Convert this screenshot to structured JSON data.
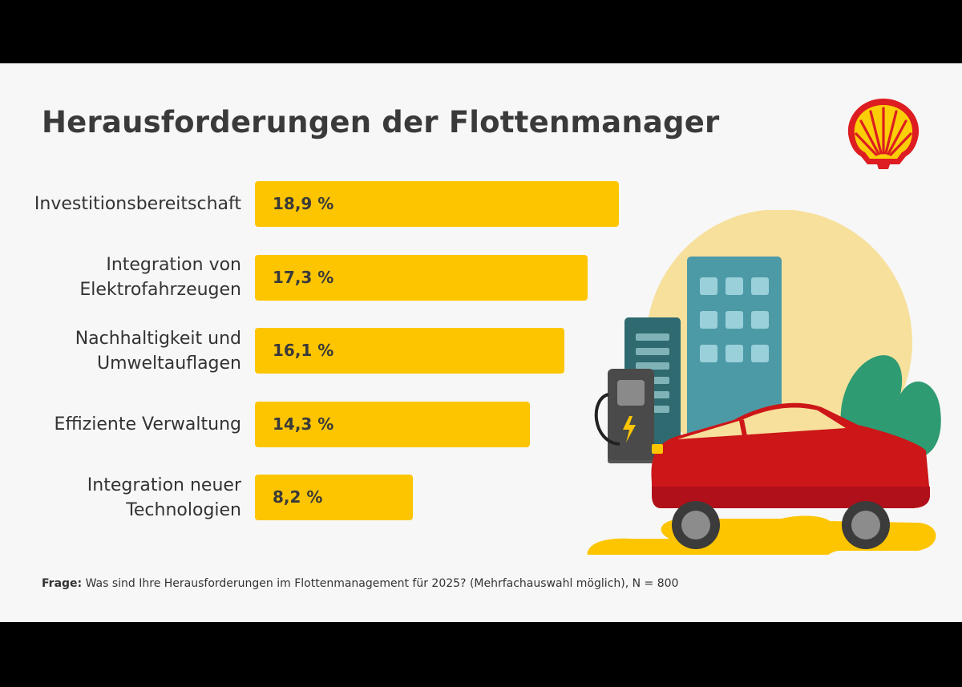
{
  "chart_data": {
    "type": "bar",
    "orientation": "horizontal",
    "title": "Herausforderungen der Flottenmanager",
    "categories": [
      "Investitionsbereitschaft",
      "Integration von\nElektrofahrzeugen",
      "Nachhaltigkeit und\nUmweltauflagen",
      "Effiziente Verwaltung",
      "Integration neuer\nTechnologien"
    ],
    "values": [
      18.9,
      17.3,
      16.1,
      14.3,
      8.2
    ],
    "value_labels": [
      "18,9 %",
      "17,3 %",
      "16,1 %",
      "14,3 %",
      "8,2 %"
    ],
    "xlim": [
      0,
      20
    ],
    "grid": false,
    "bar_color": "#fdc500"
  },
  "footnote": {
    "label": "Frage:",
    "text": " Was sind Ihre Herausforderungen im Flottenmanagement für 2025? (Mehrfachauswahl möglich), N = 800"
  },
  "colors": {
    "background": "#f7f7f7",
    "letterbox": "#000000",
    "text": "#3a3a3a",
    "shell_red": "#dd1d21",
    "shell_yellow": "#fbce07"
  },
  "icons": {
    "logo": "shell-pecten-logo",
    "illustration": "electric-car-charging-illustration"
  }
}
